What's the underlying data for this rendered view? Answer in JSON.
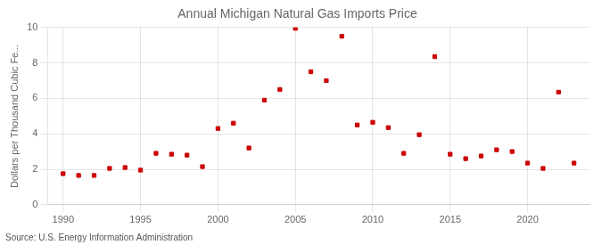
{
  "chart_data": {
    "type": "scatter",
    "title": "Annual Michigan Natural Gas Imports Price",
    "ylabel": "Dollars per Thousand Cubic Fe...",
    "annotations": [
      "Source: U.S. Energy Information Administration"
    ],
    "x": [
      1990,
      1991,
      1992,
      1993,
      1994,
      1995,
      1996,
      1997,
      1998,
      1999,
      2000,
      2001,
      2002,
      2003,
      2004,
      2005,
      2006,
      2007,
      2008,
      2009,
      2010,
      2011,
      2012,
      2013,
      2014,
      2015,
      2016,
      2017,
      2018,
      2019,
      2020,
      2021,
      2022,
      2023
    ],
    "values": [
      1.75,
      1.65,
      1.65,
      2.05,
      2.1,
      1.95,
      2.9,
      2.85,
      2.8,
      2.15,
      4.3,
      4.6,
      3.2,
      5.9,
      6.5,
      9.95,
      7.5,
      7.0,
      9.5,
      4.5,
      4.65,
      4.35,
      2.9,
      3.95,
      8.35,
      2.85,
      2.6,
      2.75,
      3.1,
      3.0,
      2.35,
      2.05,
      6.35,
      2.35
    ],
    "color": "#cc0000",
    "marker": "square",
    "xlim": [
      1989,
      2024
    ],
    "ylim": [
      0,
      10
    ],
    "xticks": [
      1990,
      1995,
      2000,
      2005,
      2010,
      2015,
      2020
    ],
    "yticks": [
      0,
      2,
      4,
      6,
      8,
      10
    ],
    "grid": true
  }
}
